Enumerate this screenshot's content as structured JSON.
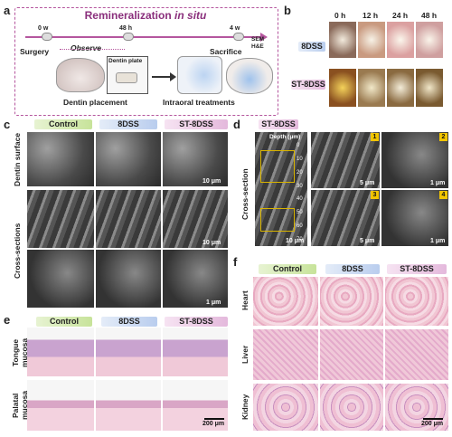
{
  "panels": {
    "a": "a",
    "b": "b",
    "c": "c",
    "d": "d",
    "e": "e",
    "f": "f"
  },
  "a": {
    "title_main": "Remineralization",
    "title_em": "in situ",
    "t0": "0 w",
    "t1": "48 h",
    "t2": "4 w",
    "surgery": "Surgery",
    "observe": "Observe",
    "sacrifice": "Sacrifice",
    "sem": "SEM",
    "he": "H&E",
    "dentin_plate": "Dentin plate",
    "dentin_placement": "Dentin placement",
    "intraoral": "Intraoral treatments"
  },
  "b": {
    "times": [
      "0 h",
      "12 h",
      "24 h",
      "48 h"
    ],
    "rows": [
      "8DSS",
      "ST-8DSS"
    ]
  },
  "groups": {
    "control": "Control",
    "dss": "8DSS",
    "st": "ST-8DSS"
  },
  "c": {
    "row_labels": [
      "Dentin surface",
      "Cross-sections"
    ],
    "scales": [
      "10 μm",
      "10 μm",
      "1 μm"
    ]
  },
  "d": {
    "header": "ST-8DSS",
    "depth_label": "Depth (μm)",
    "depth_ticks": [
      "0",
      "10",
      "20",
      "30",
      "40",
      "50",
      "60",
      "70"
    ],
    "row_label": "Cross-section",
    "insets": [
      "1",
      "2",
      "3",
      "4"
    ],
    "scales": [
      "10 μm",
      "5 μm",
      "1 μm",
      "5 μm",
      "1 μm"
    ]
  },
  "e": {
    "row_labels": [
      "Tongue mucosa",
      "Palatal mucosa"
    ],
    "scale": "200 μm"
  },
  "f": {
    "row_labels": [
      "Heart",
      "Liver",
      "Kidney"
    ],
    "scale": "200 μm"
  }
}
